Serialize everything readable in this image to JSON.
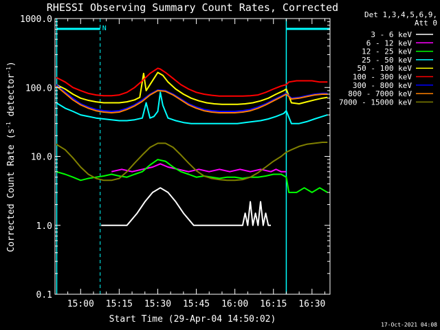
{
  "chart_data": {
    "type": "line",
    "title": "RHESSI Observing Summary Count Rates, Corrected",
    "xlabel": "Start Time (29-Apr-04 14:50:02)",
    "ylabel_main": "Corrected Count Rate (s",
    "ylabel_sup1": "-1",
    "ylabel_mid": " detector",
    "ylabel_sup2": "-1",
    "ylabel_end": ")",
    "y_scale": "log",
    "ylim": [
      0.1,
      1000
    ],
    "y_ticks": [
      "1000.0",
      "100.0",
      "10.0",
      "1.0",
      "0.1"
    ],
    "y_tick_values": [
      1000,
      100,
      10,
      1,
      0.1
    ],
    "xlim_minutes": [
      -9.97,
      97.0
    ],
    "x_tick_labels": [
      "15:00",
      "15:15",
      "15:30",
      "15:45",
      "16:00",
      "16:15",
      "16:30"
    ],
    "x_tick_minutes": [
      0,
      15,
      30,
      45,
      60,
      75,
      90
    ],
    "legend_header": [
      "Det 1,3,4,5,6,9,",
      "Att 0"
    ],
    "legend_placement": "right, outside",
    "night_marker_minutes": [
      -9.3,
      80.0
    ],
    "day_marker_minutes": [
      7.6,
      97.0
    ],
    "saa_label": "N",
    "saa_bar_minutes": [
      [
        -9.3,
        7.6
      ],
      [
        80.0,
        97.0
      ]
    ],
    "footer": "17-Oct-2021 04:08",
    "series": [
      {
        "name": "3 - 6 keV",
        "color": "#ffffff",
        "x": [
          8,
          18,
          22,
          25,
          28,
          31,
          34,
          37,
          40,
          44,
          52,
          57,
          60,
          63,
          64,
          65,
          66,
          67,
          68,
          69,
          70,
          71,
          72,
          73,
          74
        ],
        "y": [
          1.0,
          1.0,
          1.5,
          2.2,
          3.0,
          3.5,
          3.0,
          2.2,
          1.5,
          1.0,
          1.0,
          1.0,
          1.0,
          1.0,
          1.5,
          1.0,
          2.2,
          1.0,
          1.5,
          1.0,
          2.2,
          1.0,
          1.5,
          1.0,
          1.0
        ]
      },
      {
        "name": "6 - 12 keV",
        "color": "#ff00ff",
        "x": [
          12,
          16,
          20,
          24,
          28,
          31,
          34,
          38,
          42,
          46,
          50,
          54,
          58,
          62,
          66,
          70,
          74,
          76,
          78,
          80
        ],
        "y": [
          6.0,
          6.5,
          6.0,
          6.5,
          7.0,
          7.8,
          7.0,
          6.5,
          6.0,
          6.5,
          6.0,
          6.5,
          6.0,
          6.5,
          6.0,
          6.5,
          6.0,
          6.5,
          6.0,
          6.0
        ]
      },
      {
        "name": "12 - 25 keV",
        "color": "#00ff00",
        "x": [
          -9.5,
          -6,
          -3,
          0,
          3,
          6,
          9,
          12,
          15,
          18,
          21,
          24,
          27,
          30,
          33,
          36,
          39,
          42,
          45,
          48,
          51,
          54,
          57,
          60,
          63,
          66,
          69,
          72,
          75,
          78,
          80,
          81,
          84,
          87,
          90,
          93,
          96
        ],
        "y": [
          6.0,
          5.5,
          5.0,
          4.5,
          4.8,
          5.0,
          5.2,
          5.5,
          5.2,
          5.0,
          5.5,
          6.0,
          7.5,
          9.0,
          8.5,
          7.0,
          6.0,
          5.5,
          5.0,
          5.2,
          5.0,
          4.8,
          5.0,
          5.0,
          4.8,
          5.0,
          5.0,
          5.2,
          5.5,
          5.5,
          5.0,
          3.0,
          3.0,
          3.5,
          3.0,
          3.5,
          3.0
        ]
      },
      {
        "name": "25 - 50 keV",
        "color": "#00ffff",
        "x": [
          -9.5,
          -6,
          -3,
          0,
          3,
          6,
          9,
          12,
          15,
          18,
          21,
          24,
          25.5,
          27,
          28.5,
          30,
          31,
          32,
          34,
          37,
          40,
          43,
          46,
          49,
          52,
          55,
          58,
          61,
          64,
          67,
          70,
          73,
          76,
          79,
          80,
          82,
          85,
          88,
          91,
          94,
          96
        ],
        "y": [
          60,
          50,
          45,
          40,
          38,
          36,
          35,
          34,
          33,
          33,
          34,
          36,
          60,
          36,
          38,
          45,
          85,
          55,
          36,
          33,
          31,
          30,
          30,
          30,
          30,
          30,
          30,
          30,
          31,
          32,
          33,
          35,
          38,
          42,
          46,
          30,
          30,
          32,
          35,
          38,
          40
        ]
      },
      {
        "name": "50 - 100 keV",
        "color": "#ffff00",
        "x": [
          -9.5,
          -6,
          -3,
          0,
          3,
          6,
          9,
          12,
          15,
          18,
          21,
          23,
          24.5,
          25.5,
          27,
          30,
          32,
          34,
          37,
          40,
          43,
          46,
          49,
          52,
          55,
          58,
          61,
          64,
          67,
          70,
          73,
          76,
          79,
          80,
          82,
          85,
          88,
          91,
          94,
          96
        ],
        "y": [
          110,
          95,
          80,
          70,
          65,
          62,
          60,
          60,
          60,
          62,
          66,
          72,
          160,
          90,
          110,
          165,
          150,
          120,
          95,
          80,
          70,
          64,
          60,
          58,
          57,
          57,
          57,
          58,
          60,
          64,
          70,
          80,
          90,
          95,
          60,
          58,
          62,
          66,
          70,
          72
        ]
      },
      {
        "name": "100 - 300 keV",
        "color": "#ff0000",
        "x": [
          -9.5,
          -6,
          -3,
          0,
          3,
          6,
          9,
          12,
          15,
          18,
          21,
          24,
          27,
          30,
          31,
          33,
          36,
          39,
          42,
          45,
          48,
          51,
          54,
          57,
          60,
          63,
          66,
          69,
          72,
          75,
          78,
          80,
          81,
          84,
          87,
          90,
          93,
          96
        ],
        "y": [
          140,
          120,
          100,
          90,
          82,
          78,
          76,
          76,
          78,
          85,
          100,
          125,
          160,
          190,
          185,
          165,
          135,
          110,
          95,
          85,
          80,
          77,
          75,
          75,
          75,
          75,
          76,
          78,
          85,
          95,
          105,
          110,
          120,
          125,
          125,
          125,
          120,
          120
        ]
      },
      {
        "name": "300 - 800 keV",
        "color": "#0000ff",
        "x": [
          -9.5,
          -6,
          -3,
          0,
          3,
          6,
          9,
          12,
          15,
          18,
          21,
          24,
          27,
          30,
          33,
          36,
          39,
          42,
          45,
          48,
          51,
          54,
          57,
          60,
          63,
          66,
          69,
          72,
          75,
          78,
          80,
          82,
          85,
          88,
          91,
          94,
          96
        ],
        "y": [
          110,
          85,
          70,
          58,
          52,
          48,
          46,
          45,
          46,
          50,
          56,
          66,
          80,
          92,
          90,
          80,
          68,
          58,
          52,
          48,
          46,
          45,
          45,
          45,
          46,
          48,
          52,
          58,
          66,
          75,
          82,
          70,
          72,
          76,
          80,
          82,
          82
        ]
      },
      {
        "name": "800 - 7000 keV",
        "color": "#ff8000",
        "x": [
          -9.5,
          -6,
          -3,
          0,
          3,
          6,
          9,
          12,
          15,
          18,
          21,
          24,
          27,
          30,
          33,
          36,
          39,
          42,
          45,
          48,
          51,
          54,
          57,
          60,
          63,
          66,
          69,
          72,
          75,
          78,
          80,
          82,
          85,
          88,
          91,
          94,
          96
        ],
        "y": [
          105,
          82,
          66,
          56,
          50,
          46,
          44,
          43,
          44,
          48,
          54,
          63,
          78,
          90,
          88,
          78,
          66,
          56,
          50,
          46,
          44,
          43,
          43,
          43,
          44,
          46,
          50,
          56,
          64,
          73,
          80,
          68,
          70,
          74,
          78,
          80,
          80
        ]
      },
      {
        "name": "7000 - 15000 keV",
        "color": "#808000",
        "x": [
          -9.5,
          -6,
          -3,
          0,
          3,
          6,
          9,
          12,
          15,
          18,
          21,
          24,
          27,
          30,
          33,
          36,
          39,
          42,
          45,
          48,
          51,
          54,
          57,
          60,
          63,
          66,
          69,
          72,
          75,
          78,
          80,
          82,
          85,
          88,
          91,
          94,
          96
        ],
        "y": [
          15,
          12.5,
          9.5,
          7.0,
          5.5,
          4.8,
          4.5,
          4.5,
          4.8,
          6.0,
          8.0,
          10.5,
          13.5,
          15.5,
          15.5,
          13.5,
          10.5,
          8.0,
          6.2,
          5.2,
          4.8,
          4.6,
          4.5,
          4.5,
          4.6,
          5.0,
          5.8,
          7.0,
          8.5,
          10.0,
          11.5,
          12.5,
          14.0,
          15.0,
          15.5,
          16.0,
          16.0
        ]
      }
    ]
  }
}
